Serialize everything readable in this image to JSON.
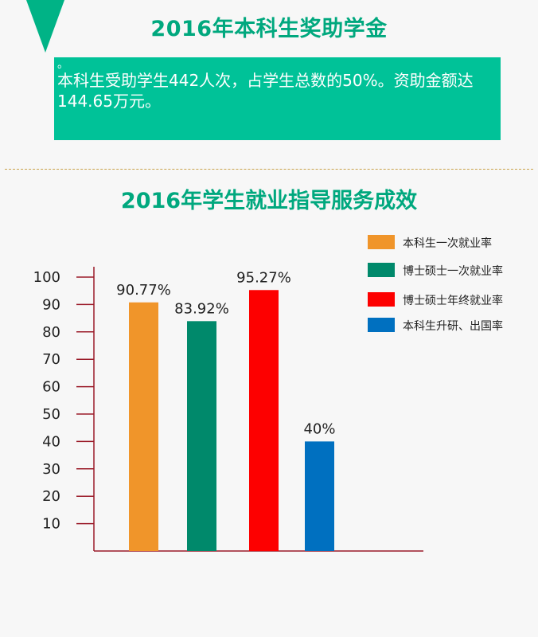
{
  "header": {
    "title": "2016年本科生奖助学金",
    "dot": "。",
    "text": "本科生受助学生442人次，占学生总数的50%。资助金额达144.65万元。"
  },
  "section2": {
    "title": "2016年学生就业指导服务成效"
  },
  "colors": {
    "accent": "#00c298",
    "title": "#00a87e",
    "axis": "#9b1c2a"
  },
  "chart_data": {
    "type": "bar",
    "categories": [
      "本科生一次就业率",
      "博士硕士一次就业率",
      "博士硕士年终就业率",
      "本科生升研、出国率"
    ],
    "values": [
      90.77,
      83.92,
      95.27,
      40
    ],
    "labels": [
      "90.77%",
      "83.92%",
      "95.27%",
      "40%"
    ],
    "colors": [
      "#f0952a",
      "#00896b",
      "#fd0000",
      "#0070c0"
    ],
    "yticks": [
      10,
      20,
      30,
      40,
      50,
      60,
      70,
      80,
      90,
      100
    ],
    "ylim": [
      0,
      100
    ],
    "legend_position": "top-right",
    "grid": false
  }
}
